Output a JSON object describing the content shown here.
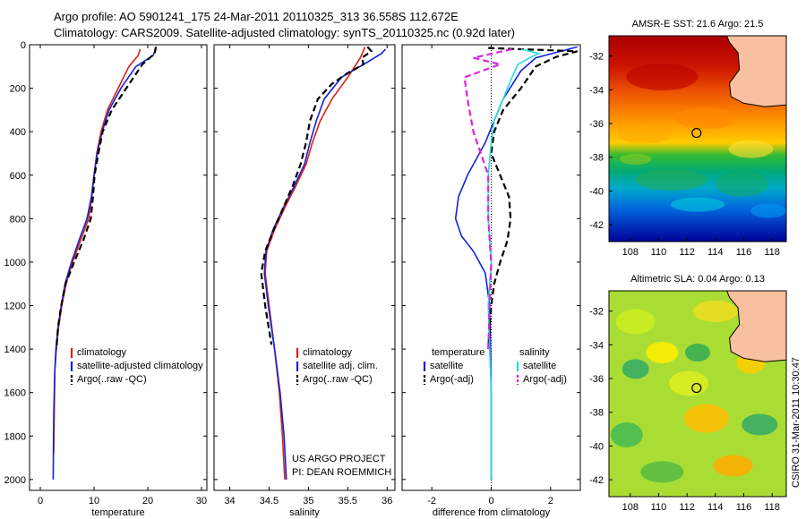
{
  "header": {
    "line1": "Argo profile: AO 5901241_175 24-Mar-2011 20110325_313 36.558S 112.672E",
    "line2": "Climatology: CARS2009. Satellite-adjusted climatology: synTS_20110325.nc (0.92d later)"
  },
  "credits": {
    "project": "US ARGO PROJECT",
    "pi": "PI: DEAN ROEMMICH",
    "vertical": "CSIRO 31-Mar-2011 10:30:47"
  },
  "colors": {
    "climatology": "#dd2211",
    "satellite": "#1122dd",
    "argo": "#000000",
    "satellite_diff_salinity": "#22dddd",
    "argo_diff_salinity": "#dd22dd",
    "land": "#f8c0a0"
  },
  "chart_data": [
    {
      "type": "line",
      "name": "temperature-profile",
      "xlabel": "temperature",
      "ylabel": "",
      "xlim": [
        -2,
        31
      ],
      "ylim": [
        2050,
        0
      ],
      "xticks": [
        0,
        10,
        20,
        30
      ],
      "yticks": [
        0,
        200,
        400,
        600,
        800,
        1000,
        1200,
        1400,
        1600,
        1800,
        2000
      ],
      "legend": [
        "climatology",
        "satellite-adjusted climatology",
        "Argo(..raw -QC)"
      ],
      "legend_position": "lower-right",
      "series": [
        {
          "name": "climatology",
          "color": "#dd2211",
          "style": "solid",
          "points": [
            [
              18.6,
              20
            ],
            [
              18.2,
              50
            ],
            [
              16.5,
              100
            ],
            [
              14.5,
              200
            ],
            [
              12.5,
              300
            ],
            [
              11.3,
              400
            ],
            [
              10.5,
              500
            ],
            [
              10.0,
              600
            ],
            [
              9.6,
              700
            ],
            [
              9.0,
              800
            ],
            [
              7.5,
              900
            ],
            [
              6.0,
              1000
            ],
            [
              4.8,
              1100
            ],
            [
              4.0,
              1200
            ],
            [
              3.4,
              1300
            ],
            [
              3.0,
              1400
            ],
            [
              2.7,
              1500
            ],
            [
              2.6,
              1700
            ],
            [
              2.5,
              1880
            ]
          ]
        },
        {
          "name": "satellite-adjusted climatology",
          "color": "#1122dd",
          "style": "solid",
          "points": [
            [
              21.6,
              10
            ],
            [
              21.0,
              50
            ],
            [
              17.8,
              100
            ],
            [
              15.0,
              200
            ],
            [
              12.8,
              300
            ],
            [
              11.5,
              400
            ],
            [
              10.6,
              500
            ],
            [
              10.0,
              600
            ],
            [
              9.5,
              700
            ],
            [
              8.7,
              800
            ],
            [
              7.2,
              900
            ],
            [
              5.8,
              1000
            ],
            [
              4.6,
              1100
            ],
            [
              3.9,
              1200
            ],
            [
              3.3,
              1300
            ],
            [
              2.9,
              1400
            ],
            [
              2.7,
              1500
            ],
            [
              2.5,
              1700
            ],
            [
              2.4,
              2000
            ]
          ]
        },
        {
          "name": "Argo(..raw -QC)",
          "color": "#000000",
          "style": "dashed",
          "points": [
            [
              21.5,
              10
            ],
            [
              21.3,
              40
            ],
            [
              19.0,
              90
            ],
            [
              16.0,
              200
            ],
            [
              13.3,
              300
            ],
            [
              11.6,
              400
            ],
            [
              10.8,
              500
            ],
            [
              10.1,
              600
            ],
            [
              9.8,
              700
            ],
            [
              9.4,
              800
            ],
            [
              8.0,
              900
            ],
            [
              6.3,
              1000
            ],
            [
              4.7,
              1100
            ],
            [
              3.9,
              1200
            ],
            [
              3.3,
              1300
            ],
            [
              3.0,
              1400
            ]
          ]
        }
      ]
    },
    {
      "type": "line",
      "name": "salinity-profile",
      "xlabel": "salinity",
      "ylabel": "",
      "xlim": [
        33.8,
        36.1
      ],
      "ylim": [
        2050,
        0
      ],
      "xticks": [
        34,
        34.5,
        35,
        35.5,
        36
      ],
      "xtick_labels": [
        "34",
        "34.5",
        "35",
        "35.5",
        "36"
      ],
      "legend": [
        "climatology",
        "satellite adj. clim.",
        "Argo(..raw -QC)"
      ],
      "legend_position": "lower-right",
      "series": [
        {
          "name": "climatology",
          "color": "#dd2211",
          "style": "solid",
          "points": [
            [
              35.72,
              10
            ],
            [
              35.66,
              60
            ],
            [
              35.5,
              150
            ],
            [
              35.3,
              250
            ],
            [
              35.15,
              350
            ],
            [
              35.05,
              450
            ],
            [
              34.97,
              550
            ],
            [
              34.84,
              650
            ],
            [
              34.7,
              750
            ],
            [
              34.57,
              850
            ],
            [
              34.47,
              950
            ],
            [
              34.45,
              1050
            ],
            [
              34.5,
              1200
            ],
            [
              34.57,
              1400
            ],
            [
              34.63,
              1600
            ],
            [
              34.67,
              1800
            ],
            [
              34.7,
              2000
            ]
          ]
        },
        {
          "name": "satellite adj. clim.",
          "color": "#1122dd",
          "style": "solid",
          "points": [
            [
              35.98,
              20
            ],
            [
              35.93,
              40
            ],
            [
              35.75,
              80
            ],
            [
              35.42,
              150
            ],
            [
              35.2,
              250
            ],
            [
              35.1,
              350
            ],
            [
              35.02,
              450
            ],
            [
              34.95,
              550
            ],
            [
              34.82,
              650
            ],
            [
              34.68,
              750
            ],
            [
              34.55,
              850
            ],
            [
              34.46,
              950
            ],
            [
              34.44,
              1050
            ],
            [
              34.49,
              1200
            ],
            [
              34.57,
              1400
            ],
            [
              34.64,
              1600
            ],
            [
              34.69,
              1800
            ],
            [
              34.72,
              2000
            ]
          ]
        },
        {
          "name": "Argo(..raw -QC)",
          "color": "#000000",
          "style": "dashed",
          "points": [
            [
              35.75,
              10
            ],
            [
              35.8,
              30
            ],
            [
              35.68,
              60
            ],
            [
              35.7,
              90
            ],
            [
              35.5,
              130
            ],
            [
              35.3,
              180
            ],
            [
              35.12,
              250
            ],
            [
              35.02,
              350
            ],
            [
              34.97,
              450
            ],
            [
              34.9,
              550
            ],
            [
              34.8,
              650
            ],
            [
              34.68,
              750
            ],
            [
              34.56,
              850
            ],
            [
              34.45,
              950
            ],
            [
              34.4,
              1050
            ],
            [
              34.45,
              1200
            ],
            [
              34.53,
              1380
            ]
          ]
        }
      ]
    },
    {
      "type": "line",
      "name": "difference-from-climatology",
      "xlabel": "difference from climatology",
      "ylabel": "",
      "xlim": [
        -3,
        3
      ],
      "ylim": [
        2050,
        0
      ],
      "xticks": [
        -2,
        0,
        2
      ],
      "legend_headers": [
        "temperature",
        "salinity"
      ],
      "legend": [
        "satellite",
        "Argo(-adj)",
        "satellite",
        "Argo(-adj)"
      ],
      "legend_position": "lower-center",
      "series": [
        {
          "name": "satellite",
          "group": "temperature",
          "color": "#1122dd",
          "style": "solid",
          "points": [
            [
              2.9,
              10
            ],
            [
              1.5,
              60
            ],
            [
              1.0,
              120
            ],
            [
              0.4,
              250
            ],
            [
              0.1,
              350
            ],
            [
              -0.2,
              450
            ],
            [
              -0.8,
              600
            ],
            [
              -1.1,
              700
            ],
            [
              -1.2,
              800
            ],
            [
              -1.0,
              880
            ],
            [
              -0.6,
              950
            ],
            [
              -0.2,
              1050
            ],
            [
              -0.05,
              1200
            ],
            [
              -0.02,
              1400
            ],
            [
              0,
              1600
            ],
            [
              0,
              1800
            ],
            [
              0,
              2000
            ]
          ]
        },
        {
          "name": "Argo(-adj)",
          "group": "temperature",
          "color": "#000000",
          "style": "dashed",
          "points": [
            [
              -0.1,
              15
            ],
            [
              2.9,
              30
            ],
            [
              2.2,
              55
            ],
            [
              1.5,
              100
            ],
            [
              1.0,
              200
            ],
            [
              0.4,
              300
            ],
            [
              0.1,
              400
            ],
            [
              0.0,
              500
            ],
            [
              0.3,
              600
            ],
            [
              0.6,
              700
            ],
            [
              0.65,
              800
            ],
            [
              0.55,
              900
            ],
            [
              0.3,
              1000
            ],
            [
              0.1,
              1100
            ],
            [
              0.0,
              1200
            ],
            [
              -0.05,
              1300
            ],
            [
              -0.1,
              1400
            ]
          ]
        },
        {
          "name": "satellite",
          "group": "salinity",
          "color": "#22dddd",
          "style": "solid",
          "points": [
            [
              1.0,
              20
            ],
            [
              1.6,
              40
            ],
            [
              1.3,
              60
            ],
            [
              0.9,
              90
            ],
            [
              0.7,
              150
            ],
            [
              0.4,
              250
            ],
            [
              0.1,
              350
            ],
            [
              0.0,
              450
            ],
            [
              -0.1,
              600
            ],
            [
              -0.1,
              800
            ],
            [
              0.0,
              1000
            ],
            [
              -0.1,
              1200
            ],
            [
              -0.05,
              1400
            ],
            [
              0,
              1600
            ],
            [
              0,
              2000
            ]
          ]
        },
        {
          "name": "Argo(-adj)",
          "group": "salinity",
          "color": "#dd22dd",
          "style": "dashed",
          "points": [
            [
              0.7,
              20
            ],
            [
              -0.6,
              60
            ],
            [
              0.3,
              90
            ],
            [
              -0.9,
              150
            ],
            [
              -0.8,
              250
            ],
            [
              -0.6,
              400
            ],
            [
              -0.1,
              600
            ],
            [
              -0.1,
              800
            ],
            [
              0,
              1000
            ],
            [
              -0.05,
              1200
            ],
            [
              -0.1,
              1400
            ]
          ]
        }
      ]
    },
    {
      "type": "heatmap",
      "name": "sst-map",
      "title": "AMSR-E SST: 21.6 Argo: 21.5",
      "xlim": [
        106.5,
        119
      ],
      "ylim": [
        -43,
        -30.8
      ],
      "xticks": [
        108,
        110,
        112,
        114,
        116,
        118
      ],
      "yticks": [
        -32,
        -34,
        -36,
        -38,
        -40,
        -42
      ],
      "marker": [
        112.672,
        -36.558
      ],
      "land": [
        [
          114.8,
          -30.8
        ],
        [
          119,
          -30.8
        ],
        [
          119,
          -34.9
        ],
        [
          117.5,
          -35.0
        ],
        [
          116.0,
          -34.8
        ],
        [
          115.1,
          -34.4
        ],
        [
          115.0,
          -33.6
        ],
        [
          115.7,
          -32.8
        ],
        [
          115.6,
          -31.8
        ],
        [
          115.0,
          -31.2
        ]
      ]
    },
    {
      "type": "heatmap",
      "name": "sla-map",
      "title": "Altimetric SLA: 0.04 Argo: 0.13",
      "xlim": [
        106.5,
        119
      ],
      "ylim": [
        -43,
        -30.8
      ],
      "xticks": [
        108,
        110,
        112,
        114,
        116,
        118
      ],
      "yticks": [
        -32,
        -34,
        -36,
        -38,
        -40,
        -42
      ],
      "marker": [
        112.672,
        -36.558
      ],
      "land": [
        [
          114.8,
          -30.8
        ],
        [
          119,
          -30.8
        ],
        [
          119,
          -34.9
        ],
        [
          117.5,
          -35.0
        ],
        [
          116.0,
          -34.8
        ],
        [
          115.1,
          -34.4
        ],
        [
          115.0,
          -33.6
        ],
        [
          115.7,
          -32.8
        ],
        [
          115.6,
          -31.8
        ],
        [
          115.0,
          -31.2
        ]
      ]
    }
  ]
}
